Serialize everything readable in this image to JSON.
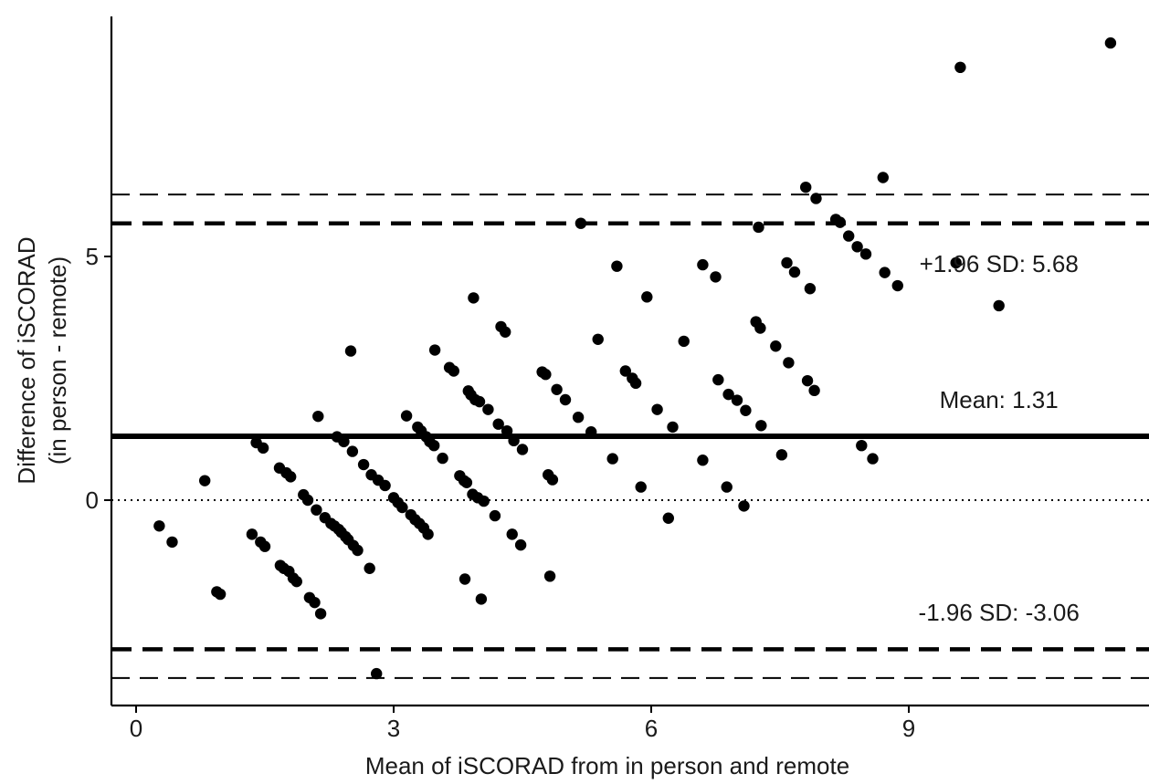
{
  "chart_data": {
    "type": "scatter",
    "title": "",
    "xlabel": "Mean of iSCORAD from in person and remote",
    "ylabel_line1": "Difference of iSCORAD",
    "ylabel_line2": "(in person - remote)",
    "xlim": [
      -0.3,
      11.8
    ],
    "ylim": [
      -4.0,
      10.0
    ],
    "x_ticks": [
      0,
      3,
      6,
      9
    ],
    "y_ticks": [
      0,
      5
    ],
    "grid": false,
    "legend": "none",
    "colors": {
      "points": "#000000",
      "lines": "#000000",
      "background": "#ffffff"
    },
    "reference_lines": [
      {
        "name": "zero",
        "y": 0,
        "style": "dotted"
      },
      {
        "name": "mean",
        "y": 1.31,
        "style": "solid"
      },
      {
        "name": "upper_loa",
        "y": 5.68,
        "style": "dashed-bold"
      },
      {
        "name": "lower_loa",
        "y": -3.06,
        "style": "dashed-bold"
      },
      {
        "name": "upper_loa_ci",
        "y": 6.27,
        "style": "dashed-thin"
      },
      {
        "name": "lower_loa_ci",
        "y": -3.65,
        "style": "dashed-thin"
      }
    ],
    "annotations": [
      {
        "text": "+1.96 SD: 5.68",
        "x": 10.05,
        "y": 4.85
      },
      {
        "text": "Mean: 1.31",
        "x": 10.05,
        "y": 2.06
      },
      {
        "text": "-1.96 SD: -3.06",
        "x": 10.05,
        "y": -2.3
      }
    ],
    "points": [
      [
        0.27,
        -0.53
      ],
      [
        0.42,
        -0.86
      ],
      [
        0.8,
        0.4
      ],
      [
        0.94,
        -1.88
      ],
      [
        0.98,
        -1.93
      ],
      [
        1.35,
        -0.7
      ],
      [
        1.4,
        1.18
      ],
      [
        1.45,
        -0.86
      ],
      [
        1.48,
        1.07
      ],
      [
        1.5,
        -0.95
      ],
      [
        1.67,
        0.66
      ],
      [
        1.68,
        -1.34
      ],
      [
        1.72,
        -1.4
      ],
      [
        1.75,
        0.56
      ],
      [
        1.78,
        -1.46
      ],
      [
        1.8,
        0.48
      ],
      [
        1.83,
        -1.6
      ],
      [
        1.87,
        -1.67
      ],
      [
        1.95,
        0.11
      ],
      [
        2.0,
        0.0
      ],
      [
        2.02,
        -2.0
      ],
      [
        2.08,
        -2.1
      ],
      [
        2.1,
        -0.2
      ],
      [
        2.12,
        1.72
      ],
      [
        2.15,
        -2.33
      ],
      [
        2.2,
        -0.36
      ],
      [
        2.27,
        -0.48
      ],
      [
        2.31,
        -0.53
      ],
      [
        2.34,
        1.3
      ],
      [
        2.36,
        -0.6
      ],
      [
        2.39,
        -0.66
      ],
      [
        2.42,
        1.2
      ],
      [
        2.44,
        -0.75
      ],
      [
        2.47,
        -0.81
      ],
      [
        2.5,
        3.06
      ],
      [
        2.52,
        1.0
      ],
      [
        2.53,
        -0.93
      ],
      [
        2.58,
        -1.03
      ],
      [
        2.65,
        0.73
      ],
      [
        2.72,
        -1.4
      ],
      [
        2.74,
        0.52
      ],
      [
        2.8,
        -3.56
      ],
      [
        2.82,
        0.41
      ],
      [
        2.9,
        0.3
      ],
      [
        3.0,
        0.05
      ],
      [
        3.05,
        -0.05
      ],
      [
        3.1,
        -0.15
      ],
      [
        3.15,
        1.73
      ],
      [
        3.2,
        -0.3
      ],
      [
        3.25,
        -0.4
      ],
      [
        3.28,
        1.5
      ],
      [
        3.3,
        -0.48
      ],
      [
        3.32,
        1.42
      ],
      [
        3.35,
        -0.57
      ],
      [
        3.38,
        1.3
      ],
      [
        3.4,
        -0.7
      ],
      [
        3.42,
        1.2
      ],
      [
        3.47,
        1.12
      ],
      [
        3.48,
        3.08
      ],
      [
        3.57,
        0.86
      ],
      [
        3.65,
        2.72
      ],
      [
        3.7,
        2.65
      ],
      [
        3.77,
        0.5
      ],
      [
        3.82,
        0.4
      ],
      [
        3.83,
        -1.62
      ],
      [
        3.85,
        0.36
      ],
      [
        3.87,
        2.24
      ],
      [
        3.9,
        2.16
      ],
      [
        3.92,
        0.12
      ],
      [
        3.93,
        4.15
      ],
      [
        3.95,
        2.06
      ],
      [
        3.98,
        0.05
      ],
      [
        4.0,
        2.02
      ],
      [
        4.02,
        -2.03
      ],
      [
        4.05,
        -0.02
      ],
      [
        4.1,
        1.86
      ],
      [
        4.18,
        -0.32
      ],
      [
        4.22,
        1.56
      ],
      [
        4.25,
        3.56
      ],
      [
        4.3,
        3.45
      ],
      [
        4.32,
        1.42
      ],
      [
        4.38,
        -0.7
      ],
      [
        4.4,
        1.22
      ],
      [
        4.48,
        -0.92
      ],
      [
        4.5,
        1.04
      ],
      [
        4.73,
        2.63
      ],
      [
        4.77,
        2.58
      ],
      [
        4.8,
        0.52
      ],
      [
        4.82,
        -1.56
      ],
      [
        4.85,
        0.42
      ],
      [
        4.9,
        2.27
      ],
      [
        5.0,
        2.06
      ],
      [
        5.15,
        1.7
      ],
      [
        5.18,
        5.68
      ],
      [
        5.3,
        1.4
      ],
      [
        5.38,
        3.3
      ],
      [
        5.55,
        0.85
      ],
      [
        5.6,
        4.8
      ],
      [
        5.7,
        2.65
      ],
      [
        5.78,
        2.5
      ],
      [
        5.82,
        2.4
      ],
      [
        5.88,
        0.27
      ],
      [
        5.95,
        4.17
      ],
      [
        6.07,
        1.86
      ],
      [
        6.2,
        -0.37
      ],
      [
        6.25,
        1.5
      ],
      [
        6.38,
        3.26
      ],
      [
        6.6,
        4.83
      ],
      [
        6.6,
        0.82
      ],
      [
        6.75,
        4.58
      ],
      [
        6.78,
        2.47
      ],
      [
        6.88,
        0.27
      ],
      [
        6.9,
        2.17
      ],
      [
        7.0,
        2.05
      ],
      [
        7.08,
        -0.12
      ],
      [
        7.1,
        1.84
      ],
      [
        7.22,
        3.66
      ],
      [
        7.25,
        5.6
      ],
      [
        7.27,
        3.53
      ],
      [
        7.28,
        1.53
      ],
      [
        7.45,
        3.16
      ],
      [
        7.52,
        0.93
      ],
      [
        7.58,
        4.87
      ],
      [
        7.6,
        2.82
      ],
      [
        7.67,
        4.68
      ],
      [
        7.8,
        6.42
      ],
      [
        7.82,
        2.45
      ],
      [
        7.85,
        4.34
      ],
      [
        7.9,
        2.25
      ],
      [
        7.92,
        6.19
      ],
      [
        8.15,
        5.76
      ],
      [
        8.2,
        5.7
      ],
      [
        8.3,
        5.42
      ],
      [
        8.4,
        5.2
      ],
      [
        8.45,
        1.12
      ],
      [
        8.5,
        5.05
      ],
      [
        8.58,
        0.85
      ],
      [
        8.72,
        4.67
      ],
      [
        8.7,
        6.62
      ],
      [
        8.87,
        4.4
      ],
      [
        9.55,
        4.87
      ],
      [
        9.6,
        8.88
      ],
      [
        10.05,
        3.99
      ],
      [
        11.35,
        9.38
      ]
    ]
  }
}
